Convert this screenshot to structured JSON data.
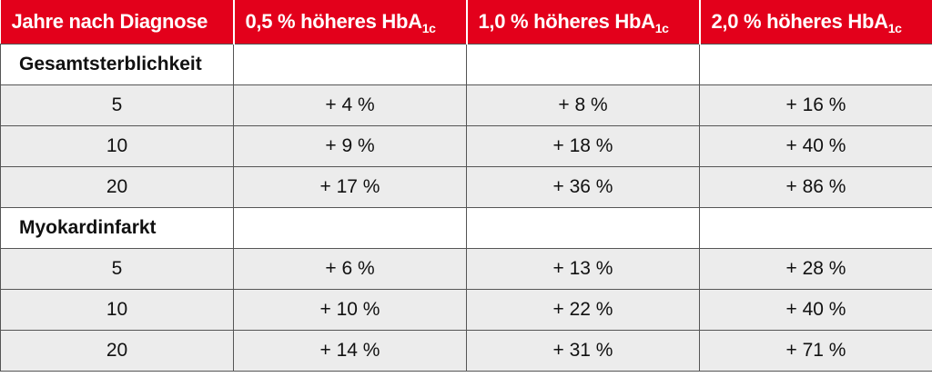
{
  "header": {
    "col1": "Jahre nach Diagnose",
    "col2_pre": "0,5 % höheres HbA",
    "col3_pre": "1,0 % höheres HbA",
    "col4_pre": "2,0 % höheres HbA",
    "subscript": "1c"
  },
  "sections": [
    {
      "title": "Gesamtsterblichkeit",
      "rows": [
        {
          "years": "5",
          "v1": "+ 4 %",
          "v2": "+ 8 %",
          "v3": "+ 16 %"
        },
        {
          "years": "10",
          "v1": "+ 9 %",
          "v2": "+ 18 %",
          "v3": "+ 40 %"
        },
        {
          "years": "20",
          "v1": "+ 17 %",
          "v2": "+ 36 %",
          "v3": "+ 86 %"
        }
      ]
    },
    {
      "title": "Myokardinfarkt",
      "rows": [
        {
          "years": "5",
          "v1": "+ 6 %",
          "v2": "+ 13 %",
          "v3": "+ 28 %"
        },
        {
          "years": "10",
          "v1": "+ 10 %",
          "v2": "+ 22 %",
          "v3": "+ 40 %"
        },
        {
          "years": "20",
          "v1": "+ 14 %",
          "v2": "+ 31 %",
          "v3": "+ 71 %"
        }
      ]
    }
  ]
}
